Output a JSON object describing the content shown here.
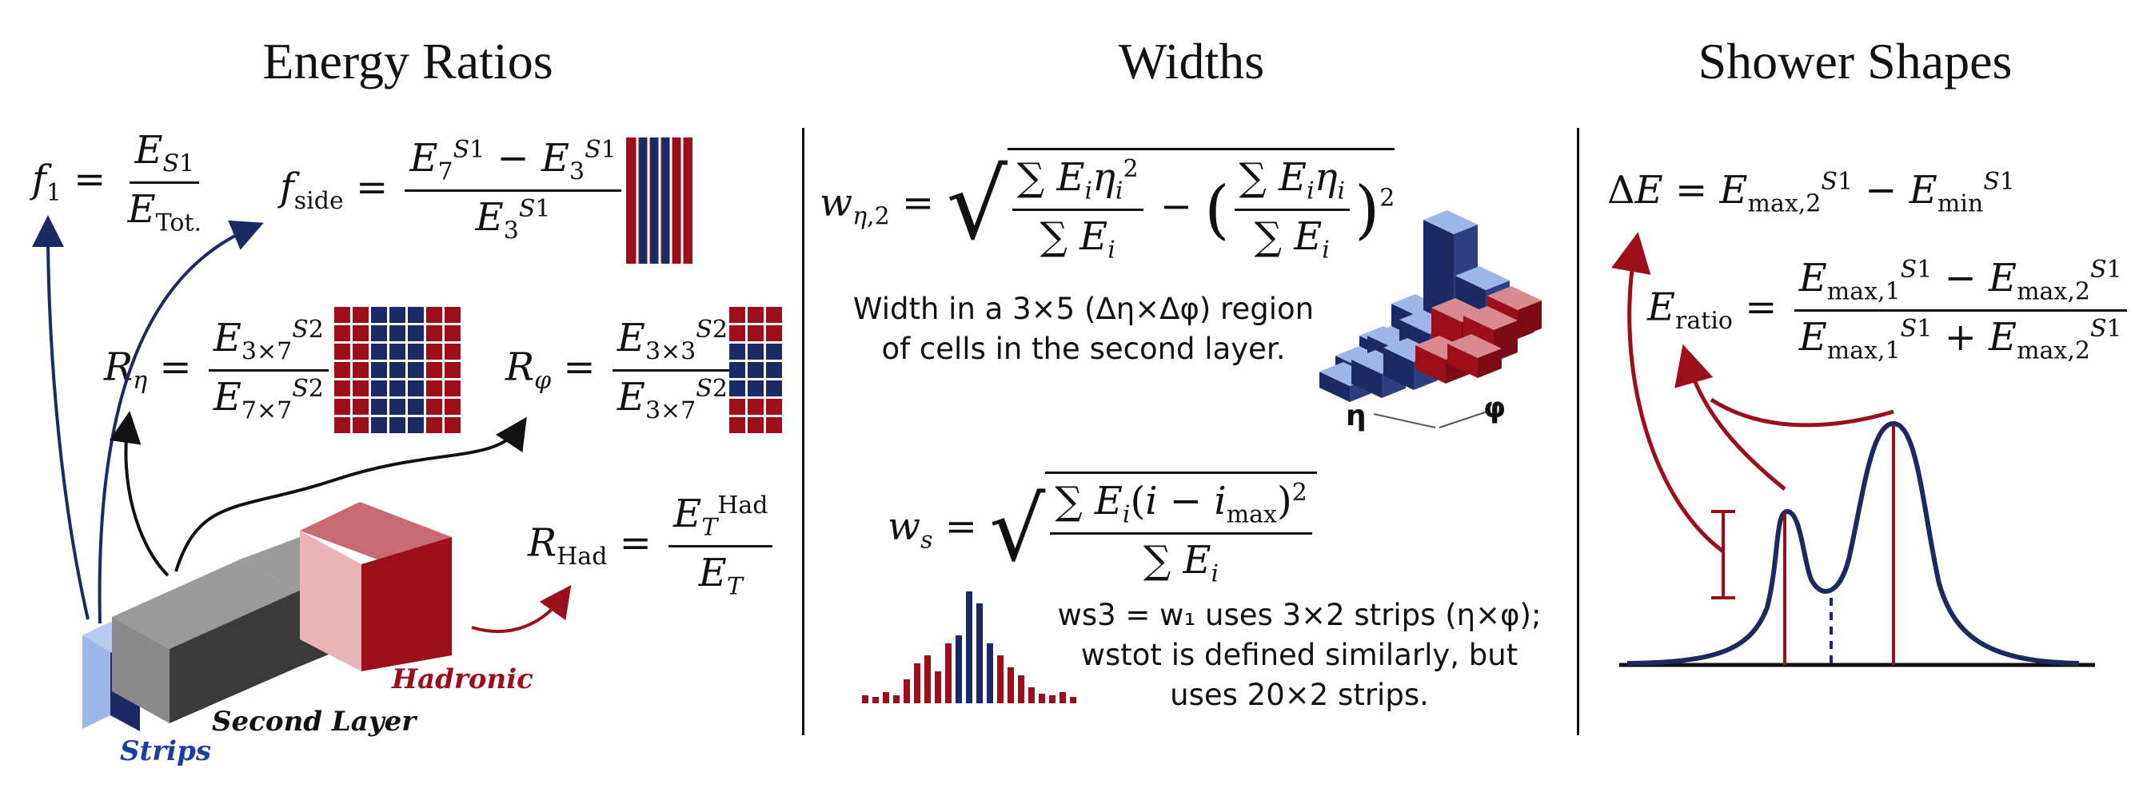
{
  "titles": {
    "energy": "Energy Ratios",
    "widths": "Widths",
    "shower": "Shower Shapes"
  },
  "equations": {
    "f1": "f₁ = E_S1 / E_Tot.",
    "fside": "f_side = (E₇^S1 − E₃^S1) / E₃^S1",
    "reta": "R_η = E^S2_3×7 / E^S2_7×7",
    "rphi": "R_φ = E^S2_3×3 / E^S2_3×7",
    "rhad": "R_Had = E_T^Had / E_T",
    "weta2": "w_η,2 = √( ΣE_i η_i² / ΣE_i − (ΣE_i η_i / ΣE_i)² )",
    "ws": "w_s = √( ΣE_i (i − i_max)² / ΣE_i )",
    "deltaE": "ΔE = E^S1_max,2 − E^S1_min",
    "eratio": "E_ratio = (E^S1_max,1 − E^S1_max,2) / (E^S1_max,1 + E^S1_max,2)"
  },
  "descriptions": {
    "weta2_line1": "Width in a 3×5 (Δη×Δφ) region",
    "weta2_line2": "of cells in the second layer.",
    "ws_line1": "ws3 = w₁ uses 3×2 strips (η×φ);",
    "ws_line2": "wstot is defined similarly, but",
    "ws_line3": "uses 20×2 strips."
  },
  "labels": {
    "strips": "Strips",
    "second_layer": "Second Layer",
    "hadronic": "Hadronic",
    "eta": "η",
    "phi": "φ"
  },
  "colors": {
    "navy": "#1b2a63",
    "red": "#9b0e1a",
    "light_blue": "#9db8e8",
    "gray": "#9a9a9a",
    "dark_gray": "#3a3a3a"
  }
}
